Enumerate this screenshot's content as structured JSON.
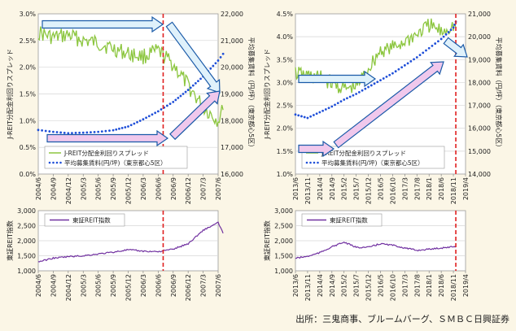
{
  "source": "出所：三鬼商事、ブルームバーグ、ＳＭＢＣ日興証券",
  "chart_data": [
    {
      "type": "line",
      "panel": "top-left",
      "ylabel_left": "J-REIT分配金利回りスプレッド",
      "ylabel_right": "平均募集賃料（円/坪）（東京都心5区）",
      "ylim_left": [
        0,
        3
      ],
      "ylim_right": [
        16000,
        22000
      ],
      "yticks_left": [
        "0.0%",
        "0.5%",
        "1.0%",
        "1.5%",
        "2.0%",
        "2.5%",
        "3.0%"
      ],
      "yticks_right": [
        "16,000",
        "17,000",
        "18,000",
        "19,000",
        "20,000",
        "21,000",
        "22,000"
      ],
      "x_ticks": [
        "2004/6",
        "2004/9",
        "2004/12",
        "2005/3",
        "2005/6",
        "2005/9",
        "2005/12",
        "2006/3",
        "2006/6",
        "2006/9",
        "2006/12",
        "2007/3",
        "2007/6"
      ],
      "legend": [
        "J-REIT分配金利回りスプレッド",
        "平均募集賃料(円/坪)（東京都心5区）"
      ],
      "legend_position": "bottom-left",
      "marker_date": "2006/7",
      "series": [
        {
          "name": "J-REIT分配金利回りスプレッド",
          "axis": "left",
          "color": "#8cc63f",
          "x": [
            "2004/6",
            "2004/9",
            "2004/12",
            "2005/3",
            "2005/6",
            "2005/9",
            "2005/12",
            "2006/3",
            "2006/6",
            "2006/9",
            "2006/12",
            "2007/3",
            "2007/6",
            "2007/7"
          ],
          "values": [
            2.65,
            2.55,
            2.6,
            2.5,
            2.45,
            2.35,
            2.25,
            2.2,
            2.3,
            2.05,
            1.65,
            1.25,
            1.0,
            1.2
          ]
        },
        {
          "name": "平均募集賃料(円/坪)（東京都心5区）",
          "axis": "right",
          "color": "#1f4fd8",
          "x": [
            "2004/6",
            "2004/9",
            "2004/12",
            "2005/3",
            "2005/6",
            "2005/9",
            "2005/12",
            "2006/3",
            "2006/6",
            "2006/9",
            "2006/12",
            "2007/3",
            "2007/6",
            "2007/7"
          ],
          "values": [
            17650,
            17580,
            17530,
            17550,
            17580,
            17640,
            17780,
            18050,
            18350,
            18700,
            19150,
            19650,
            20250,
            20500
          ]
        }
      ]
    },
    {
      "type": "line",
      "panel": "top-right",
      "ylabel_left": "J-REIT分配金利回りスプレッド",
      "ylabel_right": "平均募集賃料（円/坪）（東京都心5区）",
      "ylim_left": [
        1,
        4.5
      ],
      "ylim_right": [
        14000,
        21000
      ],
      "yticks_left": [
        "1.0%",
        "1.5%",
        "2.0%",
        "2.5%",
        "3.0%",
        "3.5%",
        "4.0%",
        "4.5%"
      ],
      "yticks_right": [
        "14,000",
        "15,000",
        "16,000",
        "17,000",
        "18,000",
        "19,000",
        "20,000",
        "21,000"
      ],
      "x_ticks": [
        "2013/6",
        "2013/11",
        "2014/4",
        "2014/9",
        "2015/2",
        "2015/7",
        "2015/12",
        "2016/5",
        "2016/10",
        "2017/3",
        "2017/8",
        "2018/1",
        "2018/6",
        "2018/11",
        "2019/4"
      ],
      "legend": [
        "J-REIT分配金利回りスプレッド",
        "平均募集賃料(円/坪)（東京都心5区）"
      ],
      "legend_position": "bottom-left",
      "marker_date": "2018/12",
      "series": [
        {
          "name": "J-REIT分配金利回りスプレッド",
          "axis": "left",
          "color": "#8cc63f",
          "x": [
            "2013/6",
            "2013/11",
            "2014/4",
            "2014/9",
            "2015/2",
            "2015/7",
            "2015/12",
            "2016/5",
            "2016/10",
            "2017/3",
            "2017/8",
            "2018/1",
            "2018/6",
            "2018/11",
            "2018/12"
          ],
          "values": [
            3.2,
            3.15,
            3.1,
            3.0,
            2.85,
            2.9,
            3.3,
            3.7,
            3.75,
            3.9,
            4.05,
            4.25,
            4.1,
            4.25,
            4.2
          ]
        },
        {
          "name": "平均募集賃料(円/坪)（東京都心5区）",
          "axis": "right",
          "color": "#1f4fd8",
          "x": [
            "2013/6",
            "2013/11",
            "2014/4",
            "2014/9",
            "2015/2",
            "2015/7",
            "2015/12",
            "2016/5",
            "2016/10",
            "2017/3",
            "2017/8",
            "2018/1",
            "2018/6",
            "2018/11",
            "2018/12"
          ],
          "values": [
            16600,
            16450,
            16700,
            16950,
            17250,
            17500,
            17800,
            18100,
            18400,
            18750,
            19100,
            19500,
            19900,
            20400,
            20650
          ]
        }
      ]
    },
    {
      "type": "line",
      "panel": "bottom-left",
      "ylabel": "東証REIT指数",
      "ylim": [
        1000,
        3000
      ],
      "yticks": [
        "1,000",
        "1,500",
        "2,000",
        "2,500",
        "3,000"
      ],
      "x_ticks": [
        "2004/6",
        "2004/9",
        "2004/12",
        "2005/3",
        "2005/6",
        "2005/9",
        "2005/12",
        "2006/3",
        "2006/6",
        "2006/9",
        "2006/12",
        "2007/3",
        "2007/6"
      ],
      "legend": [
        "東証REIT指数"
      ],
      "legend_position": "top-left",
      "marker_date": "2006/7",
      "series": [
        {
          "name": "東証REIT指数",
          "color": "#7030a0",
          "x": [
            "2004/6",
            "2004/9",
            "2004/12",
            "2005/3",
            "2005/6",
            "2005/9",
            "2005/12",
            "2006/3",
            "2006/6",
            "2006/9",
            "2006/12",
            "2007/3",
            "2007/6",
            "2007/7"
          ],
          "values": [
            1300,
            1420,
            1470,
            1500,
            1560,
            1620,
            1700,
            1650,
            1640,
            1720,
            1900,
            2350,
            2600,
            2250
          ]
        }
      ]
    },
    {
      "type": "line",
      "panel": "bottom-right",
      "ylabel": "東証REIT指数",
      "ylim": [
        1000,
        3000
      ],
      "yticks": [
        "1,000",
        "1,500",
        "2,000",
        "2,500",
        "3,000"
      ],
      "x_ticks": [
        "2013/6",
        "2013/11",
        "2014/4",
        "2014/9",
        "2015/2",
        "2015/7",
        "2015/12",
        "2016/5",
        "2016/10",
        "2017/3",
        "2017/8",
        "2018/1",
        "2018/6",
        "2018/11",
        "2019/4"
      ],
      "legend": [
        "東証REIT指数"
      ],
      "legend_position": "top-left",
      "marker_date": "2018/12",
      "series": [
        {
          "name": "東証REIT指数",
          "color": "#7030a0",
          "x": [
            "2013/6",
            "2013/11",
            "2014/4",
            "2014/9",
            "2015/2",
            "2015/7",
            "2015/12",
            "2016/5",
            "2016/10",
            "2017/3",
            "2017/8",
            "2018/1",
            "2018/6",
            "2018/11",
            "2018/12"
          ],
          "values": [
            1420,
            1480,
            1600,
            1800,
            1950,
            1780,
            1780,
            1900,
            1850,
            1760,
            1680,
            1720,
            1760,
            1800,
            1820
          ]
        }
      ]
    }
  ]
}
